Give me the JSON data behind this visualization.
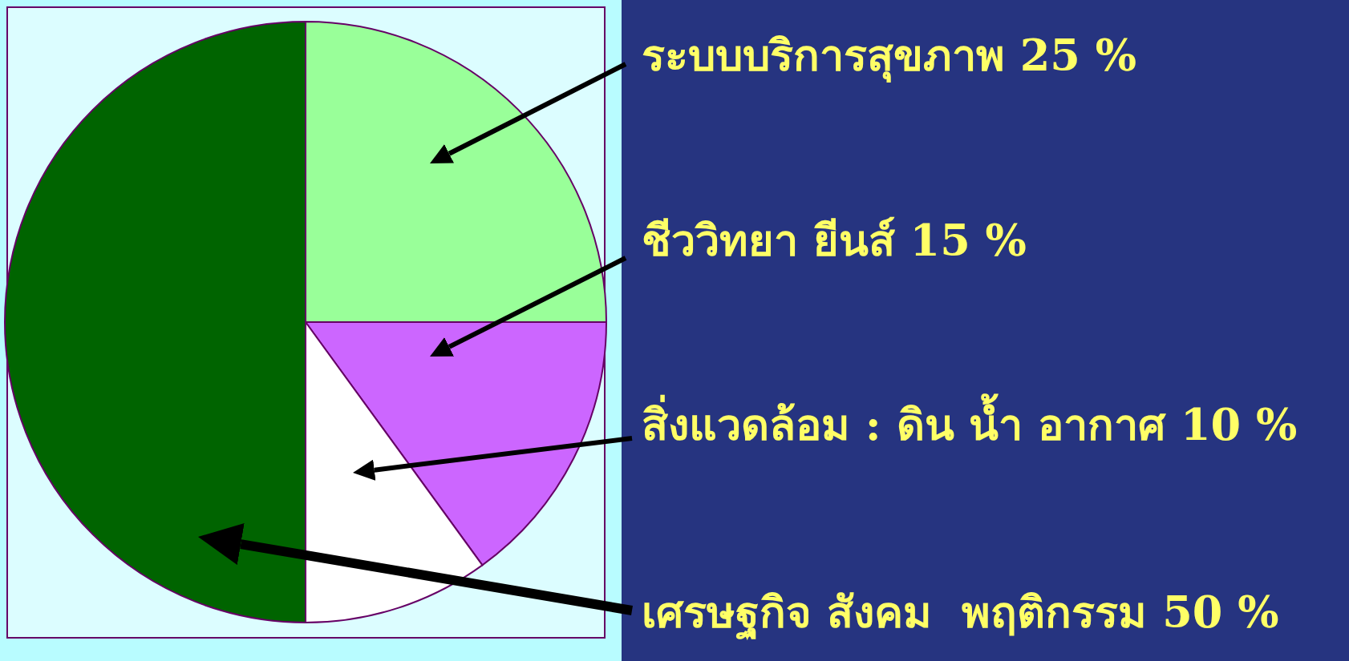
{
  "chart_data": {
    "type": "pie",
    "categories": [
      "ระบบบริการสุขภาพ",
      "ชีววิทยา ยีนส์",
      "สิ่งแวดล้อม : ดิน น้ำ อากาศ",
      "เศรษฐกิจ สังคม  พฤติกรรม"
    ],
    "values": [
      25,
      15,
      10,
      50
    ],
    "colors": [
      "#99ff99",
      "#cc66ff",
      "#ffffff",
      "#006400"
    ],
    "value_labels": [
      "25 %",
      "15 %",
      "10 %",
      "50 %"
    ]
  }
}
